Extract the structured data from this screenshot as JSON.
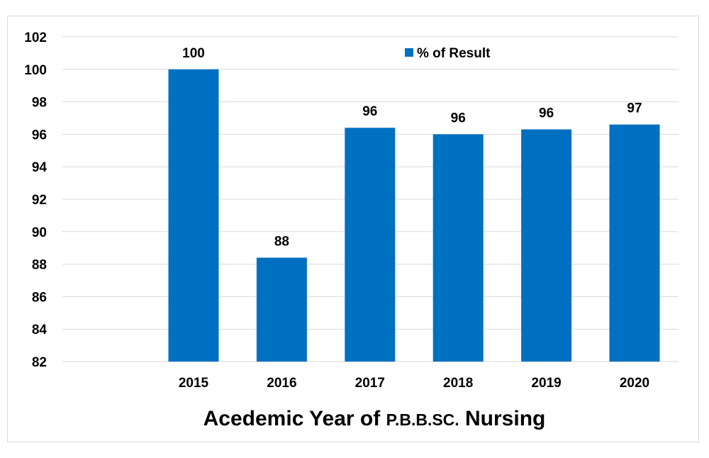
{
  "chart_data": {
    "type": "bar",
    "categories": [
      "2015",
      "2016",
      "2017",
      "2018",
      "2019",
      "2020"
    ],
    "series": [
      {
        "name": "% of Result",
        "values": [
          100,
          88.4,
          96.4,
          96.0,
          96.3,
          96.6
        ],
        "labels": [
          "100",
          "88",
          "96",
          "96",
          "96",
          "97"
        ],
        "color": "#0070C0"
      }
    ],
    "xlabel_parts": [
      "Acedemic Year of ",
      "P.B.B.SC.",
      " Nursing"
    ],
    "ylim": [
      82,
      102
    ],
    "yticks": [
      "82",
      "84",
      "86",
      "88",
      "90",
      "92",
      "94",
      "96",
      "98",
      "100",
      "102"
    ],
    "grid": true,
    "legend_position": "top-center"
  }
}
